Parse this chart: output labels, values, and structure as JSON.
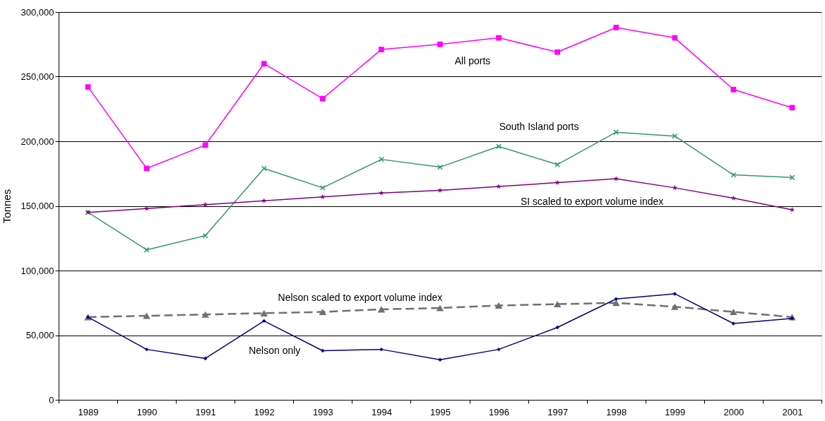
{
  "chart_data": {
    "type": "line",
    "ylabel": "Tonnes",
    "categories": [
      "1989",
      "1990",
      "1991",
      "1992",
      "1993",
      "1994",
      "1995",
      "1996",
      "1997",
      "1998",
      "1999",
      "2000",
      "2001"
    ],
    "series": [
      {
        "name": "All ports",
        "color": "#ff00ff",
        "marker": "square",
        "values": [
          242000,
          179000,
          197000,
          260000,
          233000,
          271000,
          275000,
          280000,
          269000,
          288000,
          280000,
          240000,
          226000
        ]
      },
      {
        "name": "South Island ports",
        "color": "#339966",
        "marker": "cross",
        "values": [
          145000,
          116000,
          127000,
          179000,
          164000,
          186000,
          180000,
          196000,
          182000,
          207000,
          204000,
          174000,
          172000
        ]
      },
      {
        "name": "SI scaled to export volume index",
        "color": "#800080",
        "marker": "star",
        "values": [
          145000,
          148000,
          151000,
          154000,
          157000,
          160000,
          162000,
          165000,
          168000,
          171000,
          164000,
          156000,
          147000
        ]
      },
      {
        "name": "Nelson scaled to export volume index",
        "color": "#707070",
        "marker": "triangle",
        "line_style": "dashed",
        "values": [
          64000,
          65000,
          66000,
          67000,
          68000,
          70000,
          71000,
          73000,
          74000,
          75000,
          72000,
          68000,
          64000
        ]
      },
      {
        "name": "Nelson only",
        "color": "#000080",
        "marker": "diamond",
        "values": [
          64000,
          39000,
          32000,
          61000,
          38000,
          39000,
          31000,
          39000,
          56000,
          78000,
          82000,
          59000,
          63000
        ]
      }
    ],
    "ylim": [
      0,
      300000
    ],
    "yticks": [
      {
        "value": 0,
        "label": "0"
      },
      {
        "value": 50000,
        "label": "50,000"
      },
      {
        "value": 100000,
        "label": "100,000"
      },
      {
        "value": 150000,
        "label": "150,000"
      },
      {
        "value": 200000,
        "label": "200,000"
      },
      {
        "value": 250000,
        "label": "250,000"
      },
      {
        "value": 300000,
        "label": "300,000"
      }
    ],
    "grid": "y"
  }
}
